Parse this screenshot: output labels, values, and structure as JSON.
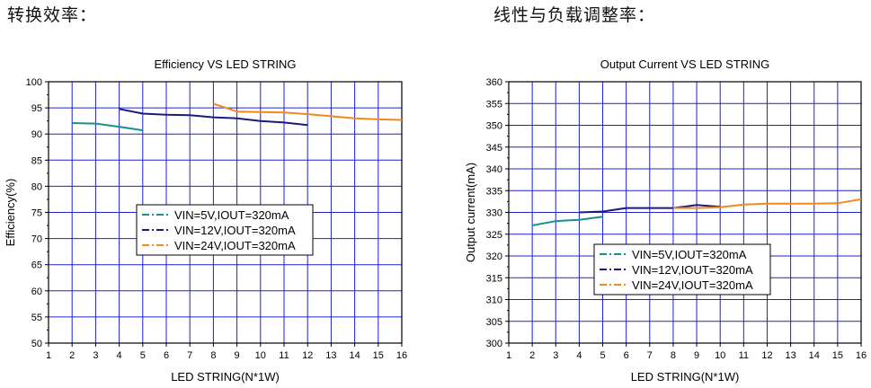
{
  "headings": {
    "left": "转换效率：",
    "right": "线性与负载调整率："
  },
  "colors": {
    "vin5": "#1a8f8f",
    "vin12": "#1a1a80",
    "vin24": "#f08a1e",
    "grid": "#2020d0"
  },
  "chart_data": [
    {
      "type": "line",
      "title": "Efficiency VS LED STRING",
      "xlabel": "LED STRING(N*1W)",
      "ylabel": "Efficiency(%)",
      "xlim": [
        1,
        16
      ],
      "ylim": [
        50,
        100
      ],
      "xticks": [
        1,
        2,
        3,
        4,
        5,
        6,
        7,
        8,
        9,
        10,
        11,
        12,
        13,
        14,
        15,
        16
      ],
      "yticks": [
        50,
        55,
        60,
        65,
        70,
        75,
        80,
        85,
        90,
        95,
        100
      ],
      "grid": true,
      "legend_position": "center-left",
      "series": [
        {
          "name": "VIN=5V,IOUT=320mA",
          "color": "vin5",
          "x": [
            2,
            3,
            4,
            5
          ],
          "y": [
            92.1,
            92.0,
            91.4,
            90.7
          ]
        },
        {
          "name": "VIN=12V,IOUT=320mA",
          "color": "vin12",
          "x": [
            4,
            5,
            6,
            7,
            8,
            9,
            10,
            11,
            12
          ],
          "y": [
            94.8,
            93.9,
            93.7,
            93.6,
            93.2,
            93.0,
            92.5,
            92.2,
            91.7
          ]
        },
        {
          "name": "VIN=24V,IOUT=320mA",
          "color": "vin24",
          "x": [
            8,
            9,
            10,
            11,
            12,
            13,
            14,
            15,
            16
          ],
          "y": [
            95.8,
            94.3,
            94.2,
            94.1,
            93.8,
            93.4,
            93.0,
            92.8,
            92.7
          ]
        }
      ]
    },
    {
      "type": "line",
      "title": "Output Current VS LED STRING",
      "xlabel": "LED STRING(N*1W)",
      "ylabel": "Output current(mA)",
      "xlim": [
        1,
        16
      ],
      "ylim": [
        300,
        360
      ],
      "xticks": [
        1,
        2,
        3,
        4,
        5,
        6,
        7,
        8,
        9,
        10,
        11,
        12,
        13,
        14,
        15,
        16
      ],
      "yticks": [
        300,
        305,
        310,
        315,
        320,
        325,
        330,
        335,
        340,
        345,
        350,
        355,
        360
      ],
      "grid": true,
      "legend_position": "bottom-center",
      "series": [
        {
          "name": "VIN=5V,IOUT=320mA",
          "color": "vin5",
          "x": [
            2,
            3,
            4,
            5
          ],
          "y": [
            327,
            328,
            328.3,
            329
          ]
        },
        {
          "name": "VIN=12V,IOUT=320mA",
          "color": "vin12",
          "x": [
            4,
            5,
            6,
            7,
            8,
            9,
            10
          ],
          "y": [
            330,
            330.2,
            331,
            331,
            331,
            331.7,
            331.3
          ]
        },
        {
          "name": "VIN=24V,IOUT=320mA",
          "color": "vin24",
          "x": [
            8,
            9,
            10,
            11,
            12,
            13,
            14,
            15,
            16
          ],
          "y": [
            331,
            331,
            331.2,
            331.8,
            332,
            332,
            332,
            332.1,
            333
          ]
        }
      ]
    }
  ]
}
